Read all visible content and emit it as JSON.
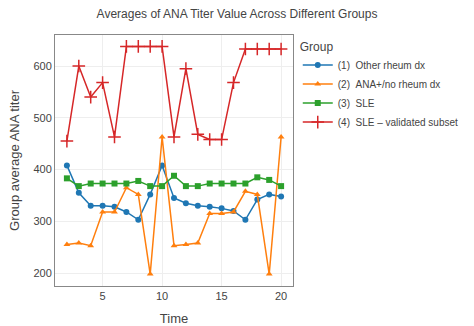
{
  "chart_data": {
    "type": "line",
    "title": "Averages of ANA Titer Value Across Different Groups",
    "xlabel": "Time",
    "ylabel": "Group average ANA titer",
    "x": [
      2,
      3,
      4,
      5,
      6,
      7,
      8,
      9,
      10,
      11,
      12,
      13,
      14,
      15,
      16,
      17,
      18,
      19,
      20
    ],
    "xlim": [
      1,
      21
    ],
    "xticks": [
      5,
      10,
      15,
      20
    ],
    "ylim": [
      175,
      660
    ],
    "yticks": [
      200,
      300,
      400,
      500,
      600
    ],
    "grid": true,
    "legend": "right",
    "legend_title": "Group",
    "series": [
      {
        "name": "(1)  Other rheum dx",
        "marker": "circle",
        "values": [
          408,
          355,
          330,
          330,
          328,
          318,
          303,
          352,
          408,
          345,
          335,
          330,
          328,
          325,
          320,
          303,
          342,
          352,
          348
        ]
      },
      {
        "name": "(2)  ANA+/no rheum dx",
        "marker": "triangle",
        "values": [
          255,
          258,
          253,
          318,
          318,
          365,
          352,
          198,
          463,
          253,
          255,
          258,
          315,
          315,
          318,
          358,
          352,
          198,
          463
        ]
      },
      {
        "name": "(3)  SLE",
        "marker": "square",
        "values": [
          383,
          368,
          373,
          373,
          373,
          373,
          378,
          368,
          368,
          388,
          368,
          368,
          373,
          373,
          373,
          373,
          385,
          380,
          368
        ]
      },
      {
        "name": "(4)  SLE – validated subset",
        "marker": "plus",
        "values": [
          455,
          600,
          540,
          568,
          463,
          638,
          638,
          638,
          638,
          463,
          595,
          468,
          458,
          458,
          568,
          633,
          633,
          633,
          633
        ]
      }
    ]
  }
}
